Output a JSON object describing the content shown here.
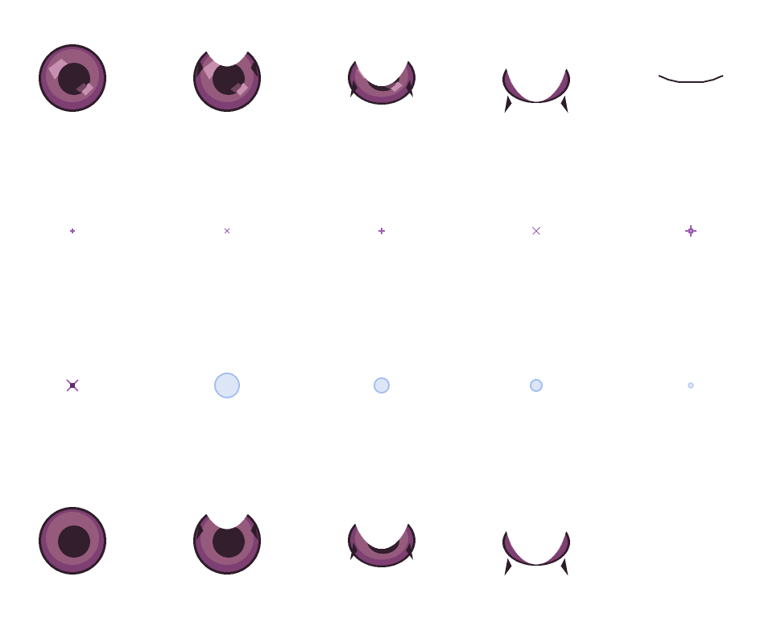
{
  "palette": {
    "outline": "#2e1d29",
    "pupil": "#321e2c",
    "iris_outer": "#7e3f73",
    "iris_mid": "#955a7c",
    "highlight": "#c78fb0",
    "highlight_dark": "#6f4560",
    "sparkle": "#9a5bb0",
    "sparkle_light": "#c9a3d8",
    "bubble_fill": "#dce6f7",
    "bubble_border": "#a3bff0"
  },
  "rows": [
    {
      "name": "eye-blink-shiny",
      "frames": [
        {
          "kind": "eye",
          "open": 1.0,
          "shine": true
        },
        {
          "kind": "eye",
          "open": 0.72,
          "shine": true
        },
        {
          "kind": "eye",
          "open": 0.45,
          "shine": true
        },
        {
          "kind": "eye",
          "open": 0.22,
          "shine": true
        },
        {
          "kind": "line"
        }
      ]
    },
    {
      "name": "sparkle",
      "frames": [
        {
          "kind": "plus",
          "size": 1
        },
        {
          "kind": "cross",
          "size": 1
        },
        {
          "kind": "plus",
          "size": 1.4
        },
        {
          "kind": "cross",
          "size": 1.5
        },
        {
          "kind": "star",
          "size": 2
        }
      ]
    },
    {
      "name": "sparkle-bubble",
      "frames": [
        {
          "kind": "star-x",
          "size": 2
        },
        {
          "kind": "bubble",
          "size": 15
        },
        {
          "kind": "bubble",
          "size": 9
        },
        {
          "kind": "bubble",
          "size": 7
        },
        {
          "kind": "bubble",
          "size": 3
        }
      ]
    },
    {
      "name": "eye-blink-plain",
      "frames": [
        {
          "kind": "eye",
          "open": 1.0,
          "shine": false
        },
        {
          "kind": "eye",
          "open": 0.72,
          "shine": false
        },
        {
          "kind": "eye",
          "open": 0.45,
          "shine": false
        },
        {
          "kind": "eye",
          "open": 0.22,
          "shine": false
        }
      ]
    }
  ]
}
